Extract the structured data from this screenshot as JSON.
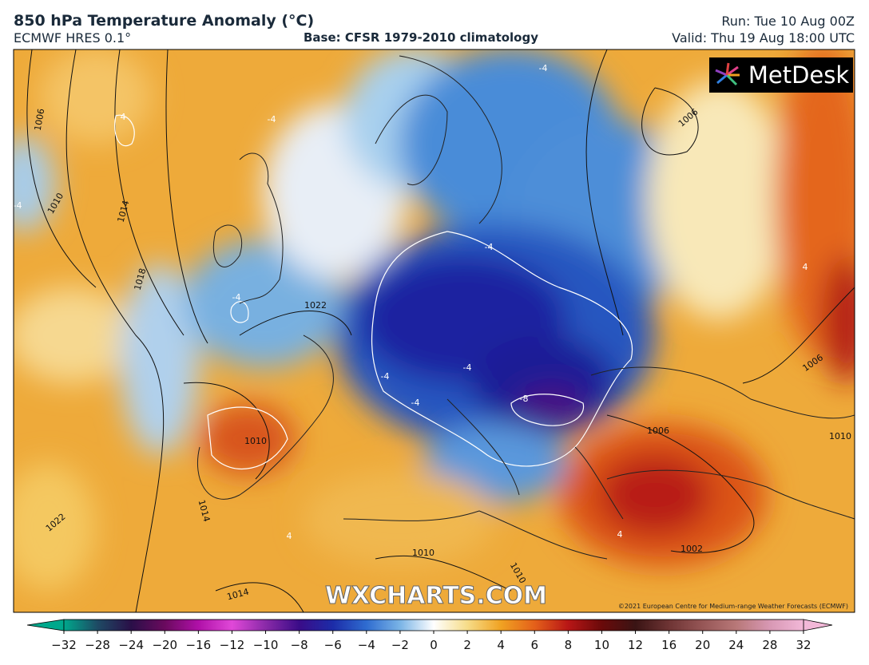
{
  "header": {
    "title": "850 hPa Temperature Anomaly (°C)",
    "model": "ECMWF HRES 0.1°",
    "base": "Base: CFSR 1979-2010 climatology",
    "run": "Run: Tue 10 Aug 00Z",
    "valid": "Valid: Thu 19 Aug 18:00 UTC"
  },
  "logo": "MetDesk",
  "watermark": "WXCHARTS.COM",
  "copyright": "©2021 European Centre for Medium-range Weather Forecasts (ECMWF)",
  "contour_labels": [
    "1006",
    "1010",
    "1014",
    "1018",
    "1022",
    "1006",
    "1006",
    "1006",
    "1010",
    "1014",
    "1022",
    "1010",
    "1010",
    "1002",
    "1014",
    "1010",
    "-4",
    "-4",
    "-4",
    "-4",
    "-4",
    "-4",
    "-4",
    "-4",
    "-8",
    "4",
    "4",
    "4",
    "4"
  ],
  "colorbar": {
    "ticks": [
      -32,
      -28,
      -24,
      -20,
      -16,
      -12,
      -10,
      -8,
      -6,
      -4,
      -2,
      0,
      2,
      4,
      6,
      8,
      10,
      12,
      16,
      20,
      24,
      28,
      32
    ],
    "colors": [
      "#00a88c",
      "#1e4a64",
      "#2a0f48",
      "#6a0a5e",
      "#b010a8",
      "#e048d8",
      "#8a2aa8",
      "#3a0c88",
      "#1c2ca8",
      "#2f6cd0",
      "#7ab4e6",
      "#ffffff",
      "#f6dc88",
      "#f0a222",
      "#e4601a",
      "#b81616",
      "#6a0a0a",
      "#3a1414",
      "#6e3434",
      "#965656",
      "#b87878",
      "#d898b4",
      "#f2b8d8"
    ]
  }
}
